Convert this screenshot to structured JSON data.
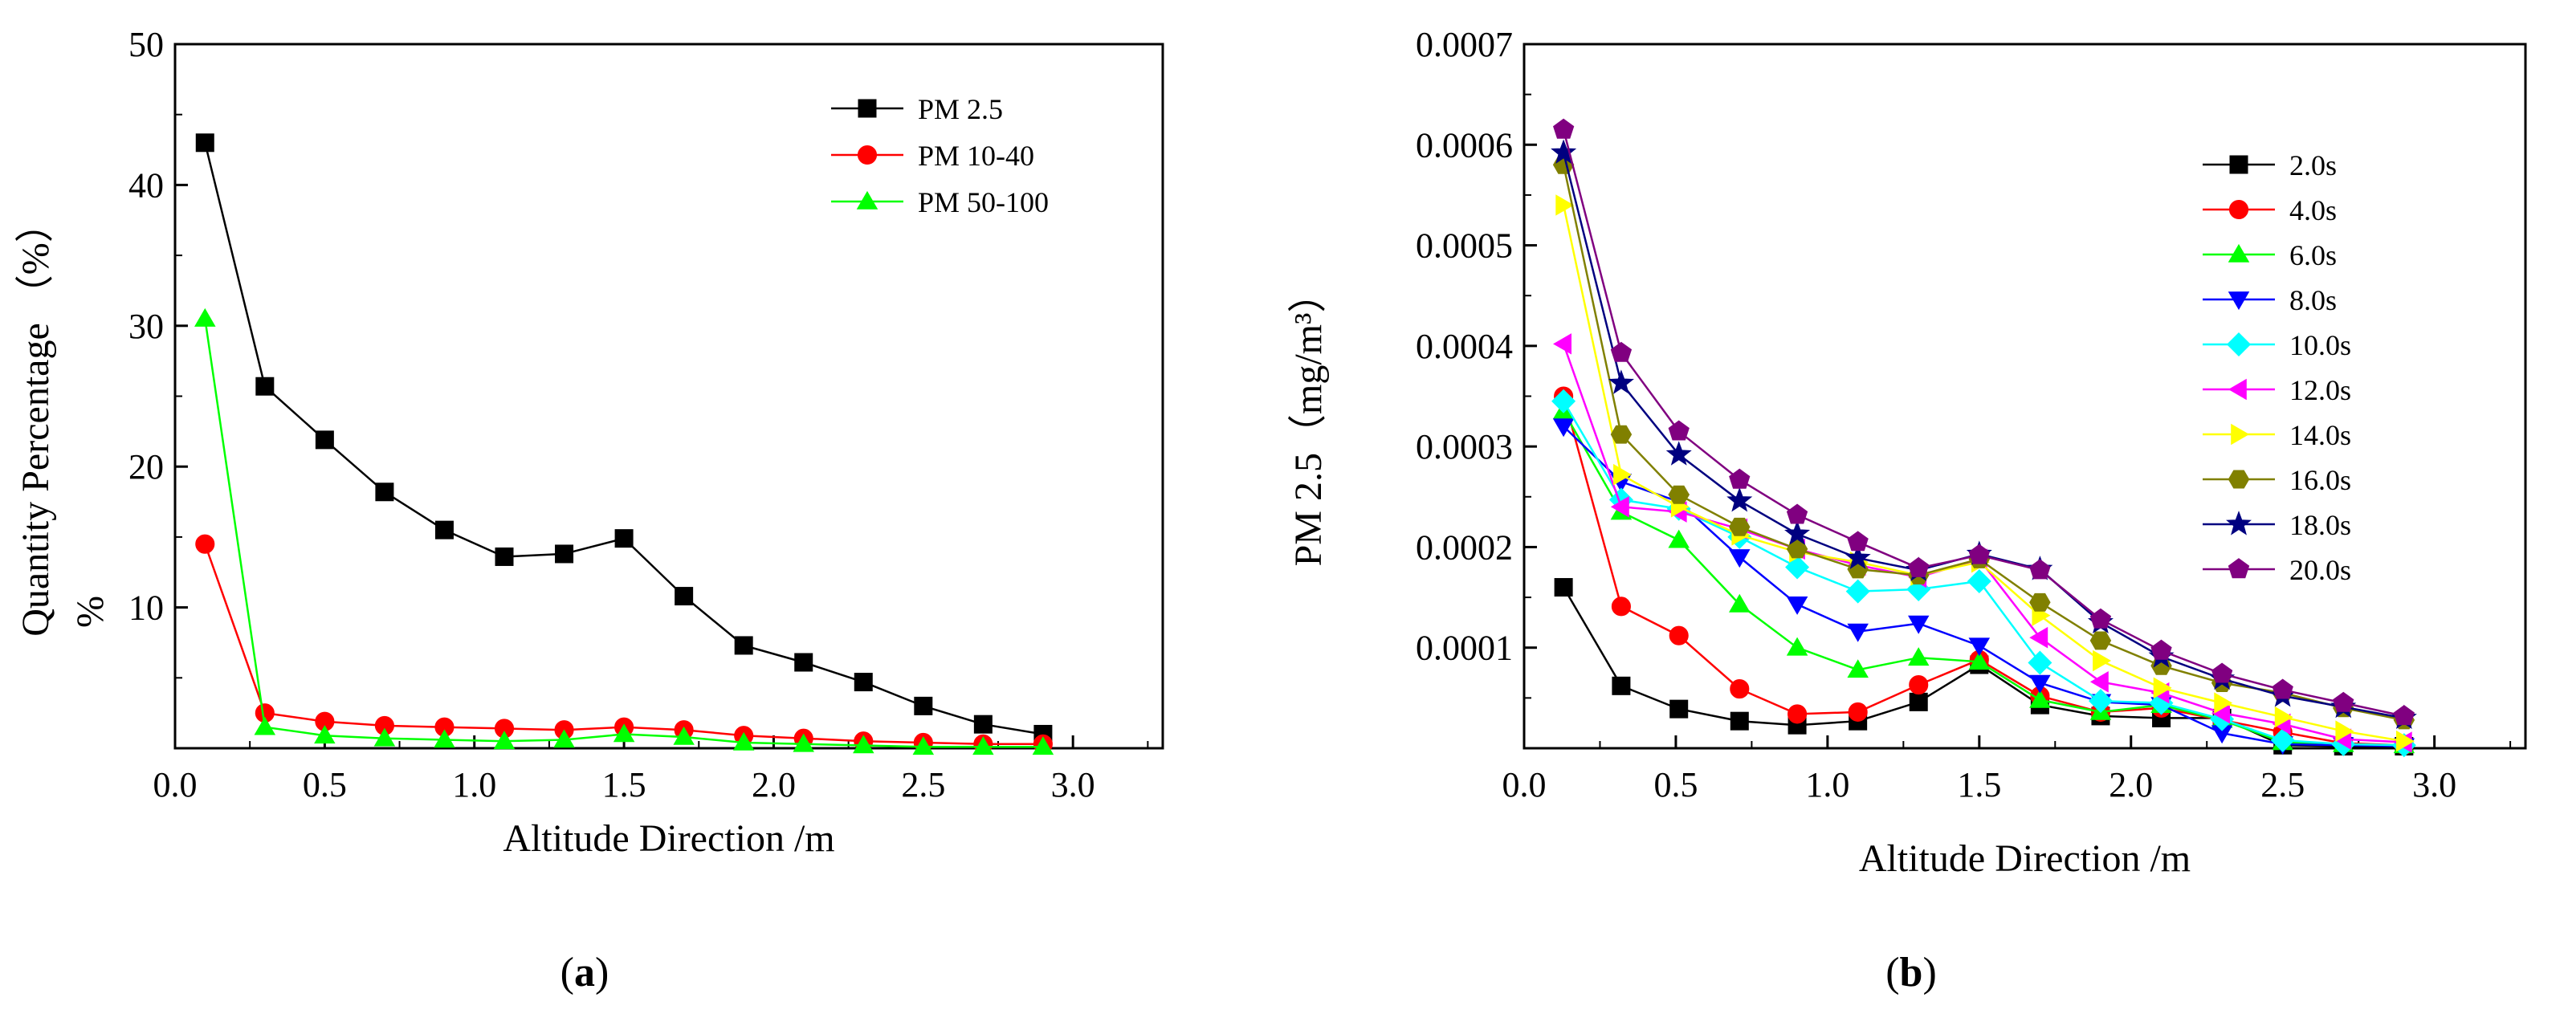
{
  "chart_data": [
    {
      "type": "line",
      "panel_label": "a",
      "xlabel": "Altitude Direction /m",
      "ylabel": "Quantity Percentage （%）",
      "ylabel_extra": "%",
      "xlim": [
        0,
        3.3
      ],
      "ylim": [
        0,
        50
      ],
      "xticks": [
        "0.0",
        "0.5",
        "1.0",
        "1.5",
        "2.0",
        "2.5",
        "3.0"
      ],
      "yticks": [
        "10",
        "20",
        "30",
        "40",
        "50"
      ],
      "legend_position": "top-right",
      "x": [
        0.1,
        0.3,
        0.5,
        0.7,
        0.9,
        1.1,
        1.3,
        1.5,
        1.7,
        1.9,
        2.1,
        2.3,
        2.5,
        2.7,
        2.9
      ],
      "series": [
        {
          "name": "PM 2.5",
          "marker": "square",
          "color": "#000000",
          "values": [
            43.0,
            25.7,
            21.9,
            18.2,
            15.5,
            13.6,
            13.8,
            14.9,
            10.8,
            7.3,
            6.1,
            4.7,
            3.0,
            1.7,
            1.0
          ]
        },
        {
          "name": "PM 10-40",
          "marker": "circle",
          "color": "#ff0000",
          "values": [
            14.5,
            2.5,
            1.9,
            1.6,
            1.5,
            1.4,
            1.3,
            1.5,
            1.3,
            0.9,
            0.7,
            0.5,
            0.4,
            0.3,
            0.3
          ]
        },
        {
          "name": "PM 50-100",
          "marker": "triangle-up",
          "color": "#00ff00",
          "values": [
            30.5,
            1.5,
            0.9,
            0.7,
            0.6,
            0.5,
            0.6,
            1.0,
            0.8,
            0.4,
            0.3,
            0.2,
            0.1,
            0.1,
            0.1
          ]
        }
      ]
    },
    {
      "type": "line",
      "panel_label": "b",
      "xlabel": "Altitude Direction /m",
      "ylabel": "PM 2.5（mg/m³）",
      "xlim": [
        0,
        3.3
      ],
      "ylim": [
        0,
        0.0007
      ],
      "xticks": [
        "0.0",
        "0.5",
        "1.0",
        "1.5",
        "2.0",
        "2.5",
        "3.0"
      ],
      "yticks": [
        "0.0001",
        "0.0002",
        "0.0003",
        "0.0004",
        "0.0005",
        "0.0006",
        "0.0007"
      ],
      "legend_position": "top-right",
      "x": [
        0.13,
        0.32,
        0.51,
        0.71,
        0.9,
        1.1,
        1.3,
        1.5,
        1.7,
        1.9,
        2.1,
        2.3,
        2.5,
        2.7,
        2.9
      ],
      "series": [
        {
          "name": "2.0s",
          "marker": "square",
          "color": "#000000",
          "values": [
            0.00016,
            6.2e-05,
            3.9e-05,
            2.7e-05,
            2.3e-05,
            2.7e-05,
            4.6e-05,
            8.3e-05,
            4.3e-05,
            3.2e-05,
            3e-05,
            3e-05,
            3e-06,
            2e-06,
            2e-06
          ]
        },
        {
          "name": "4.0s",
          "marker": "circle",
          "color": "#ff0000",
          "values": [
            0.00035,
            0.000141,
            0.000112,
            5.9e-05,
            3.4e-05,
            3.6e-05,
            6.3e-05,
            8.8e-05,
            5.2e-05,
            3.6e-05,
            4e-05,
            2.8e-05,
            1.6e-05,
            5e-06,
            3e-06
          ]
        },
        {
          "name": "6.0s",
          "marker": "triangle-up",
          "color": "#00ff00",
          "values": [
            0.000335,
            0.000235,
            0.000207,
            0.000143,
            0.0001,
            7.8e-05,
            9e-05,
            8.6e-05,
            4.8e-05,
            3.6e-05,
            4.3e-05,
            2.8e-05,
            6e-06,
            4e-06,
            3e-06
          ]
        },
        {
          "name": "8.0s",
          "marker": "triangle-down",
          "color": "#0000ff",
          "values": [
            0.00032,
            0.000265,
            0.000245,
            0.00019,
            0.000143,
            0.000116,
            0.000124,
            0.000102,
            6.5e-05,
            4.6e-05,
            4.3e-05,
            1.5e-05,
            4e-06,
            3e-06,
            2e-06
          ]
        },
        {
          "name": "10.0s",
          "marker": "diamond",
          "color": "#00ffff",
          "values": [
            0.000345,
            0.000247,
            0.000238,
            0.00021,
            0.00018,
            0.000156,
            0.000158,
            0.000166,
            8.5e-05,
            4.7e-05,
            4.5e-05,
            2.9e-05,
            8e-06,
            4e-06,
            3e-06
          ]
        },
        {
          "name": "12.0s",
          "marker": "triangle-left",
          "color": "#ff00ff",
          "values": [
            0.000402,
            0.00024,
            0.000235,
            0.000218,
            0.000198,
            0.000182,
            0.00017,
            0.000188,
            0.00011,
            6.6e-05,
            5.5e-05,
            3.5e-05,
            2.4e-05,
            9e-06,
            6e-06
          ]
        },
        {
          "name": "14.0s",
          "marker": "triangle-right",
          "color": "#ffff00",
          "values": [
            0.00054,
            0.000272,
            0.00024,
            0.000212,
            0.000195,
            0.000185,
            0.000172,
            0.000185,
            0.000132,
            8.7e-05,
            6e-05,
            4.5e-05,
            3.1e-05,
            1.7e-05,
            7e-06
          ]
        },
        {
          "name": "16.0s",
          "marker": "hexagon",
          "color": "#808000",
          "values": [
            0.00058,
            0.000312,
            0.000252,
            0.00022,
            0.000198,
            0.000178,
            0.000172,
            0.000188,
            0.000145,
            0.000107,
            8.2e-05,
            6.5e-05,
            5.5e-05,
            4e-05,
            2.8e-05
          ]
        },
        {
          "name": "18.0s",
          "marker": "star",
          "color": "#000080",
          "values": [
            0.000592,
            0.000363,
            0.000292,
            0.000246,
            0.000213,
            0.000189,
            0.000177,
            0.000193,
            0.000178,
            0.000125,
            9.1e-05,
            6.9e-05,
            5.2e-05,
            4.1e-05,
            3e-05
          ]
        },
        {
          "name": "20.0s",
          "marker": "pentagon",
          "color": "#800080",
          "values": [
            0.000615,
            0.000393,
            0.000315,
            0.000267,
            0.000232,
            0.000205,
            0.000179,
            0.000192,
            0.000177,
            0.000128,
            9.7e-05,
            7.4e-05,
            5.8e-05,
            4.5e-05,
            3.2e-05
          ]
        }
      ]
    }
  ]
}
